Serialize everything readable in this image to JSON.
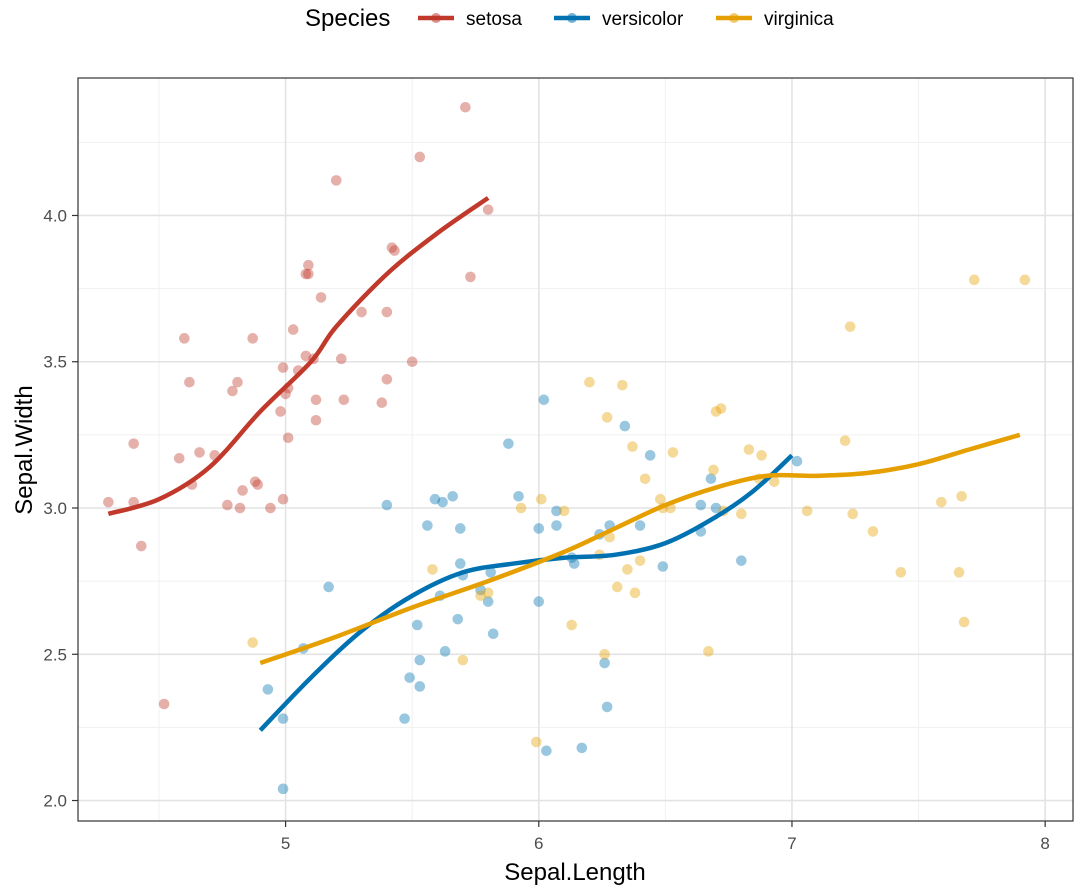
{
  "chart_data": {
    "type": "scatter",
    "title": "",
    "xlabel": "Sepal.Length",
    "ylabel": "Sepal.Width",
    "xlim": [
      4.18,
      8.11
    ],
    "ylim": [
      1.93,
      4.47
    ],
    "x_ticks": [
      5,
      6,
      7,
      8
    ],
    "x_tick_labels": [
      "5",
      "6",
      "7",
      "8"
    ],
    "y_ticks": [
      2.0,
      2.5,
      3.0,
      3.5,
      4.0
    ],
    "y_tick_labels": [
      "2.0",
      "2.5",
      "3.0",
      "3.5",
      "4.0"
    ],
    "grid": true,
    "legend": {
      "title": "Species",
      "position": "top"
    },
    "series": [
      {
        "name": "setosa",
        "color": "#C0392B",
        "points": [
          [
            4.3,
            3.02
          ],
          [
            4.4,
            3.22
          ],
          [
            4.4,
            3.02
          ],
          [
            4.43,
            2.87
          ],
          [
            4.52,
            2.33
          ],
          [
            4.58,
            3.17
          ],
          [
            4.6,
            3.58
          ],
          [
            4.62,
            3.43
          ],
          [
            4.63,
            3.08
          ],
          [
            4.66,
            3.19
          ],
          [
            4.72,
            3.18
          ],
          [
            4.77,
            3.01
          ],
          [
            4.79,
            3.4
          ],
          [
            4.81,
            3.43
          ],
          [
            4.82,
            3.0
          ],
          [
            4.83,
            3.06
          ],
          [
            4.87,
            3.58
          ],
          [
            4.88,
            3.09
          ],
          [
            4.89,
            3.08
          ],
          [
            4.94,
            3.0
          ],
          [
            4.98,
            3.33
          ],
          [
            4.99,
            3.03
          ],
          [
            4.99,
            3.48
          ],
          [
            5.0,
            3.39
          ],
          [
            5.01,
            3.41
          ],
          [
            5.01,
            3.24
          ],
          [
            5.03,
            3.61
          ],
          [
            5.05,
            3.47
          ],
          [
            5.08,
            3.52
          ],
          [
            5.08,
            3.8
          ],
          [
            5.09,
            3.83
          ],
          [
            5.09,
            3.8
          ],
          [
            5.11,
            3.51
          ],
          [
            5.12,
            3.37
          ],
          [
            5.12,
            3.3
          ],
          [
            5.14,
            3.72
          ],
          [
            5.2,
            4.12
          ],
          [
            5.22,
            3.51
          ],
          [
            5.23,
            3.37
          ],
          [
            5.3,
            3.67
          ],
          [
            5.38,
            3.36
          ],
          [
            5.4,
            3.67
          ],
          [
            5.4,
            3.44
          ],
          [
            5.42,
            3.89
          ],
          [
            5.43,
            3.88
          ],
          [
            5.5,
            3.5
          ],
          [
            5.53,
            4.2
          ],
          [
            5.71,
            4.37
          ],
          [
            5.73,
            3.79
          ],
          [
            5.8,
            4.02
          ]
        ],
        "smooth": [
          [
            4.3,
            2.98
          ],
          [
            4.5,
            3.03
          ],
          [
            4.7,
            3.14
          ],
          [
            4.9,
            3.33
          ],
          [
            5.1,
            3.5
          ],
          [
            5.2,
            3.62
          ],
          [
            5.4,
            3.8
          ],
          [
            5.6,
            3.94
          ],
          [
            5.8,
            4.06
          ]
        ]
      },
      {
        "name": "versicolor",
        "color": "#0072B2",
        "points": [
          [
            4.93,
            2.38
          ],
          [
            4.99,
            2.04
          ],
          [
            4.99,
            2.28
          ],
          [
            5.07,
            2.52
          ],
          [
            5.17,
            2.73
          ],
          [
            5.4,
            3.01
          ],
          [
            5.47,
            2.28
          ],
          [
            5.49,
            2.42
          ],
          [
            5.52,
            2.6
          ],
          [
            5.53,
            2.48
          ],
          [
            5.53,
            2.39
          ],
          [
            5.56,
            2.94
          ],
          [
            5.59,
            3.03
          ],
          [
            5.61,
            2.7
          ],
          [
            5.62,
            3.02
          ],
          [
            5.63,
            2.51
          ],
          [
            5.66,
            3.04
          ],
          [
            5.68,
            2.62
          ],
          [
            5.69,
            2.93
          ],
          [
            5.69,
            2.81
          ],
          [
            5.7,
            2.77
          ],
          [
            5.77,
            2.72
          ],
          [
            5.8,
            2.68
          ],
          [
            5.81,
            2.78
          ],
          [
            5.82,
            2.57
          ],
          [
            5.88,
            3.22
          ],
          [
            5.92,
            3.04
          ],
          [
            6.0,
            2.68
          ],
          [
            6.0,
            2.93
          ],
          [
            6.02,
            3.37
          ],
          [
            6.03,
            2.17
          ],
          [
            6.07,
            2.99
          ],
          [
            6.07,
            2.94
          ],
          [
            6.13,
            2.83
          ],
          [
            6.14,
            2.81
          ],
          [
            6.17,
            2.18
          ],
          [
            6.24,
            2.91
          ],
          [
            6.26,
            2.47
          ],
          [
            6.27,
            2.32
          ],
          [
            6.28,
            2.94
          ],
          [
            6.34,
            3.28
          ],
          [
            6.4,
            2.94
          ],
          [
            6.44,
            3.18
          ],
          [
            6.49,
            2.8
          ],
          [
            6.64,
            2.92
          ],
          [
            6.64,
            3.01
          ],
          [
            6.68,
            3.1
          ],
          [
            6.7,
            3.0
          ],
          [
            6.8,
            2.82
          ],
          [
            7.02,
            3.16
          ]
        ],
        "smooth": [
          [
            4.9,
            2.24
          ],
          [
            5.1,
            2.42
          ],
          [
            5.3,
            2.58
          ],
          [
            5.5,
            2.7
          ],
          [
            5.7,
            2.78
          ],
          [
            5.9,
            2.81
          ],
          [
            6.1,
            2.83
          ],
          [
            6.3,
            2.84
          ],
          [
            6.5,
            2.88
          ],
          [
            6.7,
            2.97
          ],
          [
            6.85,
            3.06
          ],
          [
            7.0,
            3.18
          ]
        ]
      },
      {
        "name": "virginica",
        "color": "#E69F00",
        "points": [
          [
            4.87,
            2.54
          ],
          [
            5.58,
            2.79
          ],
          [
            5.7,
            2.48
          ],
          [
            5.77,
            2.7
          ],
          [
            5.8,
            2.71
          ],
          [
            5.93,
            3.0
          ],
          [
            5.99,
            2.2
          ],
          [
            6.01,
            3.03
          ],
          [
            6.1,
            2.99
          ],
          [
            6.13,
            2.6
          ],
          [
            6.2,
            3.43
          ],
          [
            6.24,
            2.84
          ],
          [
            6.26,
            2.5
          ],
          [
            6.27,
            3.31
          ],
          [
            6.28,
            2.9
          ],
          [
            6.31,
            2.73
          ],
          [
            6.33,
            3.42
          ],
          [
            6.35,
            2.79
          ],
          [
            6.37,
            3.21
          ],
          [
            6.38,
            2.71
          ],
          [
            6.4,
            2.82
          ],
          [
            6.42,
            3.1
          ],
          [
            6.48,
            3.03
          ],
          [
            6.49,
            3.0
          ],
          [
            6.52,
            3.0
          ],
          [
            6.53,
            3.19
          ],
          [
            6.67,
            2.51
          ],
          [
            6.69,
            3.13
          ],
          [
            6.7,
            3.33
          ],
          [
            6.72,
            3.34
          ],
          [
            6.73,
            2.99
          ],
          [
            6.8,
            2.98
          ],
          [
            6.83,
            3.2
          ],
          [
            6.87,
            3.1
          ],
          [
            6.88,
            3.18
          ],
          [
            6.93,
            3.09
          ],
          [
            7.06,
            2.99
          ],
          [
            7.21,
            3.23
          ],
          [
            7.23,
            3.62
          ],
          [
            7.24,
            2.98
          ],
          [
            7.32,
            2.92
          ],
          [
            7.43,
            2.78
          ],
          [
            7.59,
            3.02
          ],
          [
            7.66,
            2.78
          ],
          [
            7.67,
            3.04
          ],
          [
            7.68,
            2.61
          ],
          [
            7.72,
            3.78
          ],
          [
            7.92,
            3.78
          ]
        ],
        "smooth": [
          [
            4.9,
            2.47
          ],
          [
            5.2,
            2.56
          ],
          [
            5.5,
            2.66
          ],
          [
            5.8,
            2.75
          ],
          [
            6.1,
            2.85
          ],
          [
            6.3,
            2.93
          ],
          [
            6.5,
            3.01
          ],
          [
            6.7,
            3.07
          ],
          [
            6.9,
            3.11
          ],
          [
            7.1,
            3.11
          ],
          [
            7.3,
            3.12
          ],
          [
            7.5,
            3.15
          ],
          [
            7.7,
            3.2
          ],
          [
            7.9,
            3.25
          ]
        ]
      }
    ]
  }
}
